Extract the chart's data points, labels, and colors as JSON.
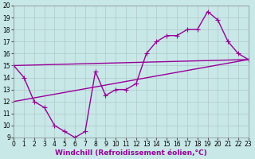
{
  "background_color": "#c8e8e8",
  "plot_bg_color": "#c8e8e8",
  "line_color": "#990099",
  "grid_color": "#b0c8c8",
  "xlabel": "Windchill (Refroidissement éolien,°C)",
  "xlim": [
    0,
    23
  ],
  "ylim": [
    9,
    20
  ],
  "xticks": [
    0,
    1,
    2,
    3,
    4,
    5,
    6,
    7,
    8,
    9,
    10,
    11,
    12,
    13,
    14,
    15,
    16,
    17,
    18,
    19,
    20,
    21,
    22,
    23
  ],
  "yticks": [
    9,
    10,
    11,
    12,
    13,
    14,
    15,
    16,
    17,
    18,
    19,
    20
  ],
  "series1_x": [
    0,
    1,
    2,
    3,
    4,
    5,
    6,
    7,
    8,
    9,
    10,
    11,
    12,
    13,
    14,
    15,
    16,
    17,
    18,
    19,
    20,
    21,
    22,
    23
  ],
  "series1_y": [
    15,
    14,
    12,
    11.5,
    10,
    9.5,
    9,
    9.5,
    14.5,
    12.5,
    13,
    13,
    13.5,
    16,
    17,
    17.5,
    17.5,
    18,
    18,
    19.5,
    18.8,
    17,
    16,
    15.5
  ],
  "line2_x": [
    0,
    23
  ],
  "line2_y": [
    15.0,
    15.5
  ],
  "line3_x": [
    0,
    23
  ],
  "line3_y": [
    12.0,
    15.5
  ],
  "marker": "+",
  "markersize": 4,
  "linewidth": 1.0,
  "xlabel_fontsize": 6.5,
  "tick_fontsize": 5.5
}
